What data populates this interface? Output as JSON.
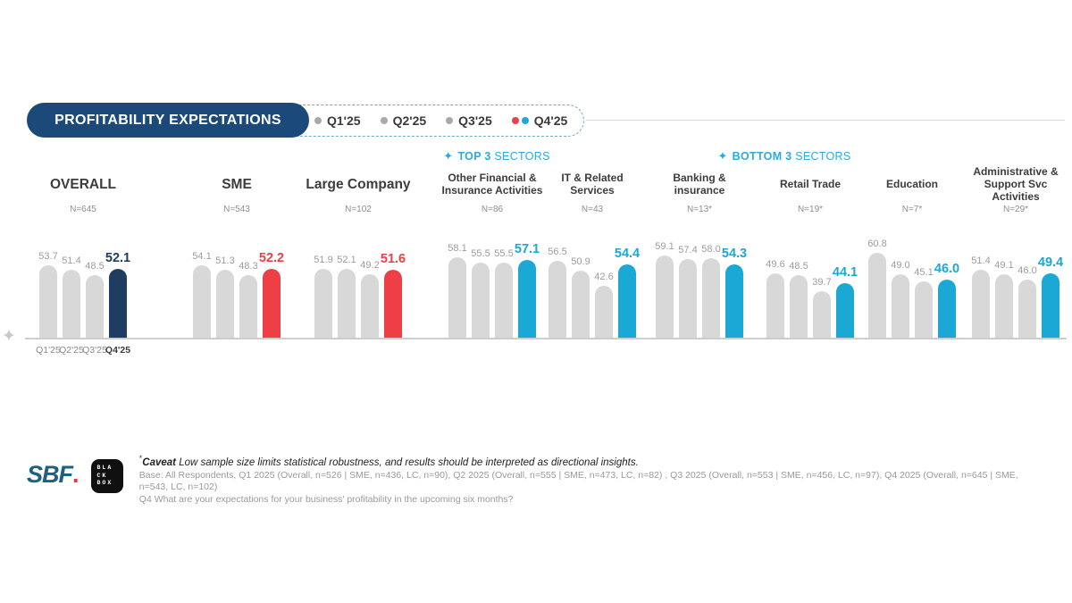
{
  "title": "PROFITABILITY EXPECTATIONS",
  "legend": {
    "items": [
      {
        "label": "Q1'25",
        "dots": [
          "#A9A9A9"
        ]
      },
      {
        "label": "Q2'25",
        "dots": [
          "#A9A9A9"
        ]
      },
      {
        "label": "Q3'25",
        "dots": [
          "#A9A9A9"
        ]
      },
      {
        "label": "Q4'25",
        "dots": [
          "#E8414B",
          "#1EA9D8"
        ]
      }
    ]
  },
  "sections": {
    "top": {
      "star": "✦",
      "bold": "TOP 3",
      "rest": "SECTORS"
    },
    "bottom": {
      "star": "✦",
      "bold": "BOTTOM 3",
      "rest": "SECTORS"
    }
  },
  "icons": {
    "axis_sparkle": "✦"
  },
  "chart_data": {
    "type": "bar",
    "title": "PROFITABILITY EXPECTATIONS",
    "quarters": [
      "Q1'25",
      "Q2'25",
      "Q3'25",
      "Q4'25"
    ],
    "bar_color_default": "#D8D8D8",
    "label_color_default": "#9C9C9C",
    "ylim": [
      14,
      62
    ],
    "groups": [
      {
        "id": "overall",
        "name_lines": [
          "OVERALL"
        ],
        "big": true,
        "n": "N=645",
        "values": [
          53.7,
          51.4,
          48.5,
          52.1
        ],
        "highlight": "#1E3D61",
        "show_axis_labels": true
      },
      {
        "id": "sme",
        "name_lines": [
          "SME"
        ],
        "big": true,
        "n": "N=543",
        "values": [
          54.1,
          51.3,
          48.3,
          52.2
        ],
        "highlight": "#EE3E46"
      },
      {
        "id": "large-company",
        "name_lines": [
          "Large Company"
        ],
        "big": true,
        "n": "N=102",
        "values": [
          51.9,
          52.1,
          49.2,
          51.6
        ],
        "highlight": "#EE3E46"
      },
      {
        "id": "other-financial-insurance",
        "name_lines": [
          "Other Financial &",
          "Insurance Activities"
        ],
        "n": "N=86",
        "values": [
          58.1,
          55.5,
          55.5,
          57.1
        ],
        "highlight": "#1BA8D5"
      },
      {
        "id": "it-related-services",
        "name_lines": [
          "IT & Related",
          "Services"
        ],
        "n": "N=43",
        "values": [
          56.5,
          50.9,
          42.6,
          54.4
        ],
        "highlight": "#1BA8D5"
      },
      {
        "id": "banking-insurance",
        "name_lines": [
          "Banking &",
          "insurance"
        ],
        "n": "N=13*",
        "values": [
          59.1,
          57.4,
          58.0,
          54.3
        ],
        "highlight": "#1BA8D5"
      },
      {
        "id": "retail-trade",
        "name_lines": [
          "Retail Trade"
        ],
        "n": "N=19*",
        "values": [
          49.6,
          48.5,
          39.7,
          44.1
        ],
        "highlight": "#1BA8D5"
      },
      {
        "id": "education",
        "name_lines": [
          "Education"
        ],
        "n": "N=7*",
        "values": [
          60.8,
          49.0,
          45.1,
          46.0
        ],
        "highlight": "#1BA8D5"
      },
      {
        "id": "admin-support-svc",
        "name_lines": [
          "Administrative &",
          "Support Svc",
          "Activities"
        ],
        "n": "N=29*",
        "values": [
          51.4,
          49.1,
          46.0,
          49.4
        ],
        "highlight": "#1BA8D5"
      }
    ]
  },
  "footer": {
    "logo_sbf_text": "SBF",
    "logo_sbf_dot": ".",
    "blackbox_lines": [
      "BLA",
      "CK",
      "BOX"
    ],
    "asterisk": "*",
    "caveat_label": "Caveat",
    "caveat_text": "Low sample size limits statistical robustness, and results should be interpreted as directional insights.",
    "base_text": "Base: All Respondents, Q1 2025 (Overall, n=526 | SME, n=436, LC, n=90), Q2 2025 (Overall, n=555 | SME, n=473, LC, n=82) , Q3 2025 (Overall, n=553 | SME, n=456, LC, n=97), Q4 2025 (Overall, n=645 | SME, n=543, LC, n=102)",
    "question_text": "Q4 What are your expectations for your business' profitability in the upcoming six months?"
  }
}
